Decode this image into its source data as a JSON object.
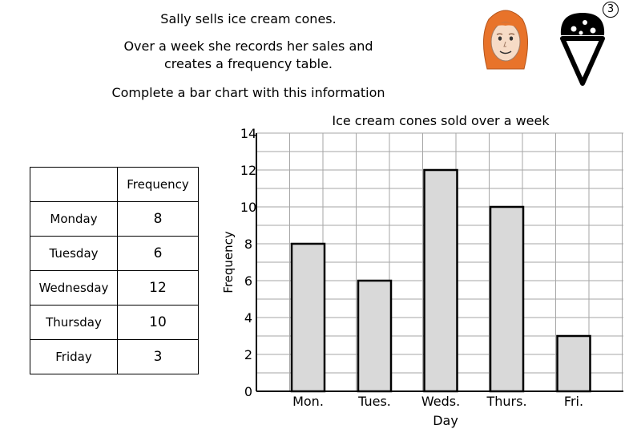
{
  "intro": {
    "line1": "Sally sells ice cream cones.",
    "line2a": "Over a week she records her sales and",
    "line2b": "creates a frequency table.",
    "line3": "Complete a bar chart with this information"
  },
  "badge": "3",
  "table": {
    "header": "Frequency",
    "rows": [
      {
        "day": "Monday",
        "value": "8"
      },
      {
        "day": "Tuesday",
        "value": "6"
      },
      {
        "day": "Wednesday",
        "value": "12"
      },
      {
        "day": "Thursday",
        "value": "10"
      },
      {
        "day": "Friday",
        "value": "3"
      }
    ]
  },
  "chart_data": {
    "type": "bar",
    "title": "Ice cream cones sold over a week",
    "xlabel": "Day",
    "ylabel": "Frequency",
    "categories": [
      "Mon.",
      "Tues.",
      "Weds.",
      "Thurs.",
      "Fri."
    ],
    "values": [
      8,
      6,
      12,
      10,
      3
    ],
    "ylim": [
      0,
      14
    ],
    "yticks": [
      0,
      2,
      4,
      6,
      8,
      10,
      12,
      14
    ],
    "grid": true,
    "bar_color": "#d9d9d9"
  },
  "colors": {
    "hair": "#e8732a",
    "skin": "#f6dbc6",
    "grid": "#a6a6a6"
  },
  "icons": [
    "girl-face-icon",
    "ice-cream-cone-icon"
  ]
}
